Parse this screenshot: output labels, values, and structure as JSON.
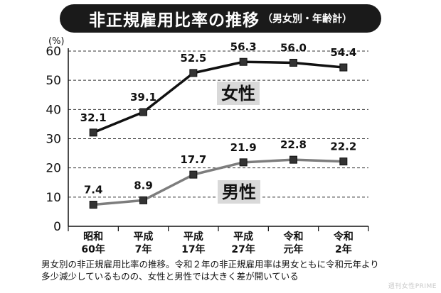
{
  "header": {
    "title_main": "非正規雇用比率の推移",
    "title_sub": "（男女別・年齢計）"
  },
  "caption": {
    "line1": "男女別の非正規雇用比率の推移。令和２年の非正規雇用率は男女ともに令和元年より",
    "line2": "多少減少しているものの、女性と男性では大きく差が開いている"
  },
  "logo": "週刊女性PRIME",
  "colors": {
    "female_line": "#111111",
    "male_line": "#7d7d7d",
    "label_box_bg": "#d9d9d9",
    "title_bg": "#1a1a1a"
  },
  "chart_data": {
    "type": "line",
    "unit_label": "(%)",
    "categories": [
      [
        "昭和",
        "60年"
      ],
      [
        "平成",
        "7年"
      ],
      [
        "平成",
        "17年"
      ],
      [
        "平成",
        "27年"
      ],
      [
        "令和",
        "元年"
      ],
      [
        "令和",
        "2年"
      ]
    ],
    "series": [
      {
        "name": "女性",
        "values": [
          32.1,
          39.1,
          52.5,
          56.3,
          56.0,
          54.4
        ],
        "labels": [
          "32.1",
          "39.1",
          "52.5",
          "56.3",
          "56.0",
          "54.4"
        ]
      },
      {
        "name": "男性",
        "values": [
          7.4,
          8.9,
          17.7,
          21.9,
          22.8,
          22.2
        ],
        "labels": [
          "7.4",
          "8.9",
          "17.7",
          "21.9",
          "22.8",
          "22.2"
        ]
      }
    ],
    "ylim": [
      0,
      60
    ],
    "yticks": [
      0,
      10,
      20,
      30,
      40,
      50,
      60
    ],
    "grid": true,
    "legend": "inline labels next to each line"
  }
}
